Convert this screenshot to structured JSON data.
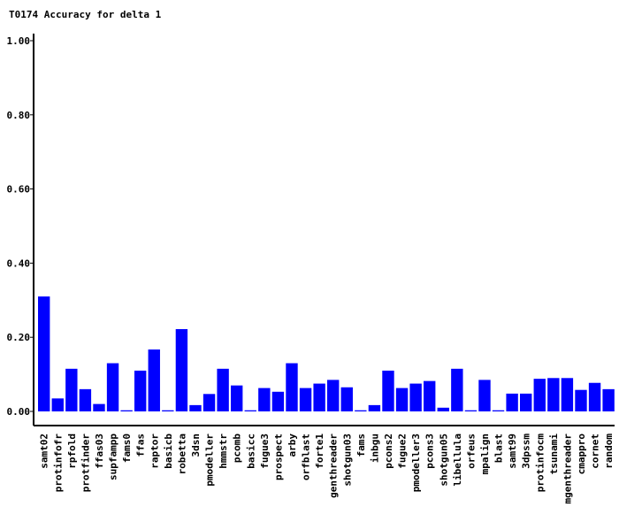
{
  "chart_data": {
    "type": "bar",
    "title": "T0174 Accuracy for delta 1",
    "xlabel": "",
    "ylabel": "",
    "ylim": [
      0,
      1.0
    ],
    "yticks": [
      "0.00",
      "0.20",
      "0.40",
      "0.60",
      "0.80",
      "1.00"
    ],
    "bar_color": "#0000ff",
    "categories": [
      "samt02",
      "protinfofr",
      "rpfold",
      "protfinder",
      "ffas03",
      "supfampp",
      "fams0",
      "ffas",
      "raptor",
      "basicb",
      "robetta",
      "3dsn",
      "pmodeller",
      "hmmstr",
      "pcomb",
      "basicc",
      "fugue3",
      "prospect",
      "arby",
      "orfblast",
      "forte1",
      "genthreader",
      "shotgun03",
      "fams",
      "inbgu",
      "pcons2",
      "fugue2",
      "pmodeller3",
      "pcons3",
      "shotgun05",
      "libellula",
      "orfeus",
      "mpalign",
      "blast",
      "samt99",
      "3dpssm",
      "protinfocm",
      "tsunami",
      "mgenthreader",
      "cmappro",
      "cornet",
      "random"
    ],
    "values": [
      0.31,
      0.035,
      0.115,
      0.06,
      0.02,
      0.13,
      0.003,
      0.11,
      0.167,
      0.003,
      0.222,
      0.017,
      0.047,
      0.115,
      0.07,
      0.003,
      0.063,
      0.053,
      0.13,
      0.063,
      0.075,
      0.085,
      0.065,
      0.003,
      0.017,
      0.11,
      0.063,
      0.075,
      0.082,
      0.01,
      0.115,
      0.003,
      0.085,
      0.003,
      0.048,
      0.048,
      0.088,
      0.09,
      0.09,
      0.058,
      0.077,
      0.06
    ]
  }
}
